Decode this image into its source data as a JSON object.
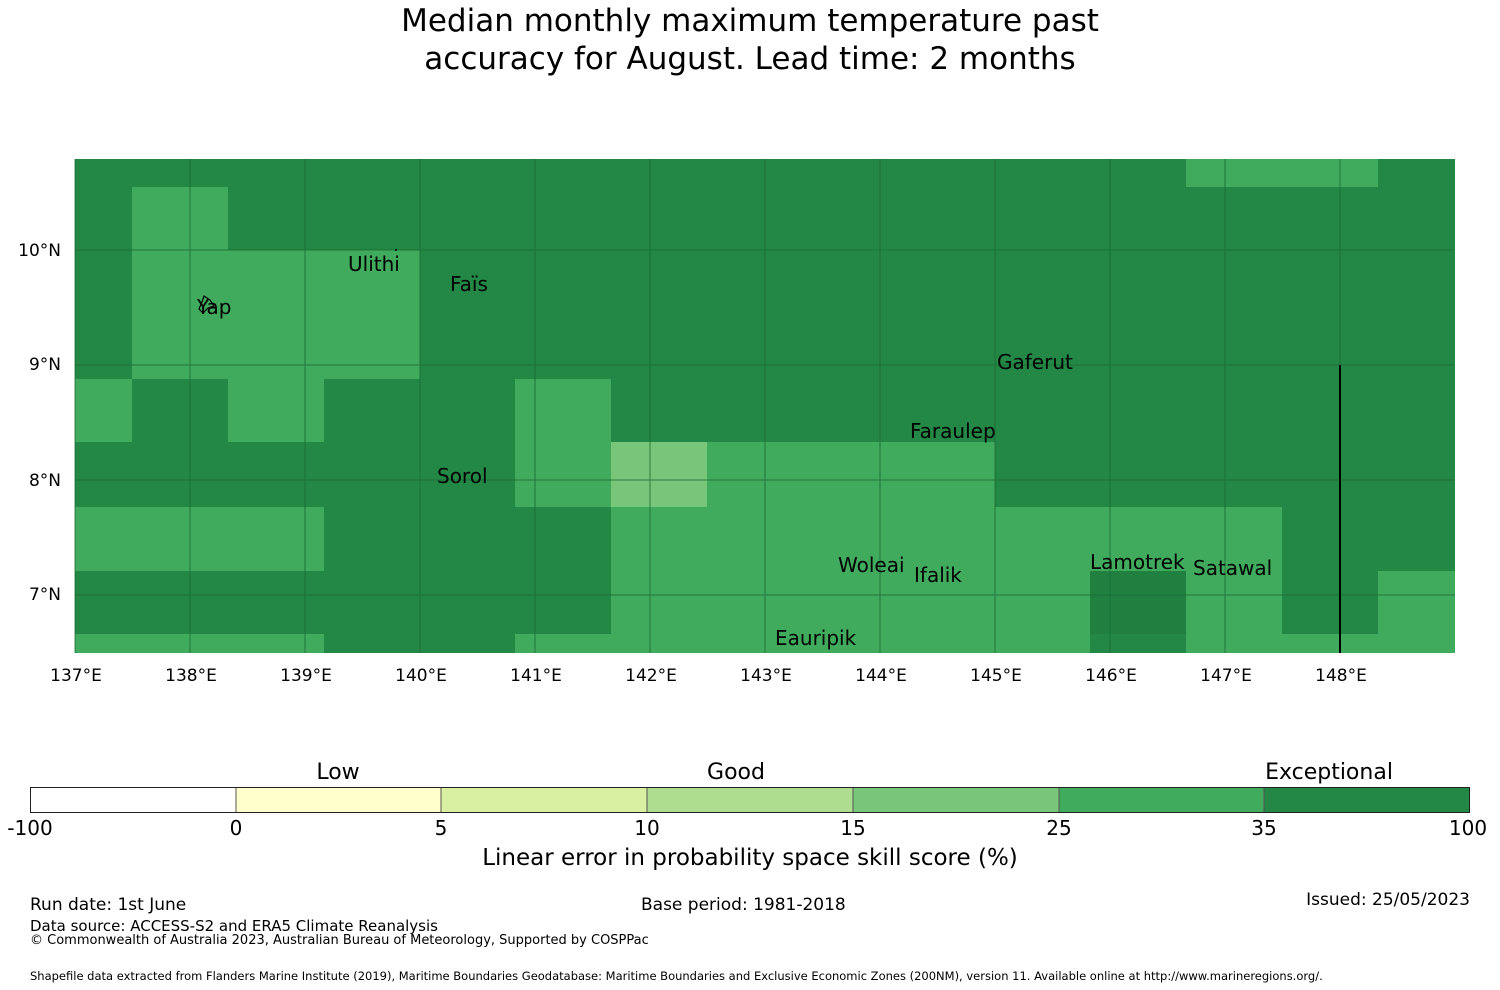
{
  "title": {
    "line1": "Median monthly maximum temperature past",
    "line2": "accuracy for August. Lead time: 2 months"
  },
  "map": {
    "lon_ticks": [
      "137°E",
      "138°E",
      "139°E",
      "140°E",
      "141°E",
      "142°E",
      "143°E",
      "144°E",
      "145°E",
      "146°E",
      "147°E",
      "148°E"
    ],
    "lat_ticks": [
      "10°N",
      "9°N",
      "8°N",
      "7°N"
    ],
    "lon_range": [
      136.87,
      148.87
    ],
    "lat_range": [
      6.5,
      10.8
    ],
    "islands": [
      {
        "name": "Ulithi",
        "lon": 139.79,
        "lat": 10.0
      },
      {
        "name": "Faïs",
        "lon": 140.52,
        "lat": 9.76
      },
      {
        "name": "Yap",
        "lon": 138.13,
        "lat": 9.53
      },
      {
        "name": "Gaferut",
        "lon": 145.38,
        "lat": 9.23
      },
      {
        "name": "Faraulep",
        "lon": 144.52,
        "lat": 8.6
      },
      {
        "name": "Sorol",
        "lon": 140.39,
        "lat": 8.13
      },
      {
        "name": "Woleai",
        "lon": 143.91,
        "lat": 7.37
      },
      {
        "name": "Ifalik",
        "lon": 144.45,
        "lat": 7.25
      },
      {
        "name": "Lamotrek",
        "lon": 146.37,
        "lat": 7.47
      },
      {
        "name": "Satawal",
        "lon": 147.03,
        "lat": 7.37
      },
      {
        "name": "Eauripik",
        "lon": 143.04,
        "lat": 6.69
      }
    ],
    "colors": {
      "exceptional": "#238845",
      "band_25_35": "#41ab5d",
      "band_15_25": "#78c679",
      "grid": "#1a6b35"
    }
  },
  "colorbar": {
    "categories": [
      "Low",
      "Good",
      "Exceptional"
    ],
    "ticks": [
      "-100",
      "0",
      "5",
      "10",
      "15",
      "25",
      "35",
      "100"
    ],
    "bins": [
      {
        "from": -100,
        "to": 0,
        "color": "#ffffff"
      },
      {
        "from": 0,
        "to": 5,
        "color": "#ffffcc"
      },
      {
        "from": 5,
        "to": 10,
        "color": "#d9f0a3"
      },
      {
        "from": 10,
        "to": 15,
        "color": "#addd8e"
      },
      {
        "from": 15,
        "to": 25,
        "color": "#78c679"
      },
      {
        "from": 25,
        "to": 35,
        "color": "#41ab5d"
      },
      {
        "from": 35,
        "to": 100,
        "color": "#238845"
      }
    ],
    "title": "Linear error in probability space skill score (%)"
  },
  "footer": {
    "run_date": "Run date: 1st June",
    "base_period": "Base period: 1981-2018",
    "issued": "Issued: 25/05/2023",
    "data_source": "Data source: ACCESS-S2 and ERA5 Climate Reanalysis",
    "copyright": "© Commonwealth of Australia 2023, Australian Bureau of Meteorology, Supported by COSPPac",
    "shapefile": "Shapefile data extracted from Flanders Marine Institute (2019), Maritime Boundaries Geodatabase: Maritime Boundaries and Exclusive Economic Zones (200NM), version 11. Available online at http://www.marineregions.org/."
  }
}
